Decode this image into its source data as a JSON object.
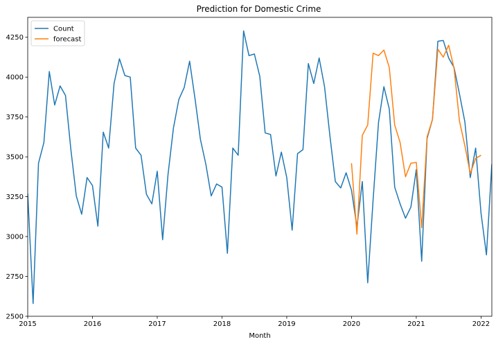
{
  "chart_data": {
    "type": "line",
    "title": "Prediction for Domestic Crime",
    "xlabel": "Month",
    "ylabel": "",
    "xlim": [
      2015.0,
      2022.1667
    ],
    "ylim": [
      2500,
      4375
    ],
    "x_ticks": [
      2015,
      2016,
      2017,
      2018,
      2019,
      2020,
      2021,
      2022
    ],
    "x_tick_labels": [
      "2015",
      "2016",
      "2017",
      "2018",
      "2019",
      "2020",
      "2021",
      "2022"
    ],
    "y_ticks": [
      2500,
      2750,
      3000,
      3250,
      3500,
      3750,
      4000,
      4250
    ],
    "y_tick_labels": [
      "2500",
      "2750",
      "3000",
      "3250",
      "3500",
      "3750",
      "4000",
      "4250"
    ],
    "legend_position": "top-left",
    "series": [
      {
        "name": "Count",
        "color": "#1f77b4",
        "start": "2015-01",
        "values": [
          3270,
          2580,
          3460,
          3590,
          4035,
          3825,
          3945,
          3885,
          3545,
          3255,
          3140,
          3370,
          3320,
          3065,
          3655,
          3555,
          3960,
          4115,
          4010,
          4000,
          3555,
          3510,
          3265,
          3205,
          3410,
          2980,
          3390,
          3680,
          3860,
          3935,
          4100,
          3865,
          3610,
          3455,
          3255,
          3330,
          3310,
          2895,
          3555,
          3510,
          4290,
          4135,
          4145,
          4005,
          3650,
          3640,
          3380,
          3530,
          3370,
          3040,
          3520,
          3545,
          4085,
          3960,
          4120,
          3940,
          3630,
          3345,
          3305,
          3400,
          3290,
          3060,
          3345,
          2710,
          3230,
          3715,
          3940,
          3800,
          3310,
          3205,
          3115,
          3185,
          3420,
          2845,
          3615,
          3735,
          4225,
          4230,
          4120,
          4060,
          3895,
          3720,
          3370,
          3555,
          3145,
          2885,
          3455
        ]
      },
      {
        "name": "forecast",
        "color": "#ff7f0e",
        "start": "2020-01",
        "values": [
          3460,
          3015,
          3635,
          3700,
          4150,
          4135,
          4170,
          4060,
          3700,
          3590,
          3375,
          3460,
          3465,
          3055,
          3625,
          3735,
          4175,
          4125,
          4200,
          4055,
          3725,
          3570,
          3395,
          3490,
          3510
        ]
      }
    ]
  }
}
